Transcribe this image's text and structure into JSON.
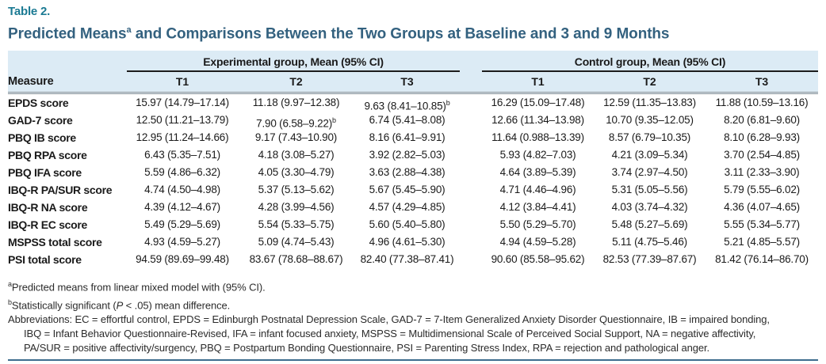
{
  "page": {
    "table_label": "Table 2.",
    "title_pre": "Predicted Means",
    "title_sup": "a",
    "title_post": " and Comparisons Between the Two Groups at Baseline and 3 and 9 Months"
  },
  "colors": {
    "accent_teal": "#1b7a93",
    "title_blue": "#33617f",
    "header_band_blue": "#dcebf5",
    "bottom_rule_blue": "#3e6d8e"
  },
  "table": {
    "measure_header": "Measure",
    "groups": [
      {
        "label": "Experimental group, Mean (95% CI)",
        "cols": [
          "T1",
          "T2",
          "T3"
        ]
      },
      {
        "label": "Control group, Mean (95% CI)",
        "cols": [
          "T1",
          "T2",
          "T3"
        ]
      }
    ],
    "rows": [
      {
        "measure": "EPDS score",
        "exp": [
          "15.97 (14.79–17.14)",
          "11.18 (9.97–12.38)",
          "9.63 (8.41–10.85)^b"
        ],
        "ctrl": [
          "16.29 (15.09–17.48)",
          "12.59 (11.35–13.83)",
          "11.88 (10.59–13.16)"
        ]
      },
      {
        "measure": "GAD-7 score",
        "exp": [
          "12.50 (11.21–13.79)",
          "7.90 (6.58–9.22)^b",
          "6.74 (5.41–8.08)"
        ],
        "ctrl": [
          "12.66 (11.34–13.98)",
          "10.70 (9.35–12.05)",
          "8.20 (6.81–9.60)"
        ]
      },
      {
        "measure": "PBQ IB score",
        "exp": [
          "12.95 (11.24–14.66)",
          "9.17 (7.43–10.90)",
          "8.16 (6.41–9.91)"
        ],
        "ctrl": [
          "11.64 (0.988–13.39)",
          "8.57 (6.79–10.35)",
          "8.10 (6.28–9.93)"
        ]
      },
      {
        "measure": "PBQ RPA score",
        "exp": [
          "6.43 (5.35–7.51)",
          "4.18 (3.08–5.27)",
          "3.92 (2.82–5.03)"
        ],
        "ctrl": [
          "5.93 (4.82–7.03)",
          "4.21 (3.09–5.34)",
          "3.70 (2.54–4.85)"
        ]
      },
      {
        "measure": "PBQ IFA score",
        "exp": [
          "5.59 (4.86–6.32)",
          "4.05 (3.30–4.79)",
          "3.63 (2.88–4.38)"
        ],
        "ctrl": [
          "4.64 (3.89–5.39)",
          "3.74 (2.97–4.50)",
          "3.11 (2.33–3.90)"
        ]
      },
      {
        "measure": "IBQ-R PA/SUR score",
        "exp": [
          "4.74 (4.50–4.98)",
          "5.37 (5.13–5.62)",
          "5.67 (5.45–5.90)"
        ],
        "ctrl": [
          "4.71 (4.46–4.96)",
          "5.31 (5.05–5.56)",
          "5.79 (5.55–6.02)"
        ]
      },
      {
        "measure": "IBQ-R NA score",
        "exp": [
          "4.39 (4.12–4.67)",
          "4.28 (3.99–4.56)",
          "4.57 (4.29–4.85)"
        ],
        "ctrl": [
          "4.12 (3.84–4.41)",
          "4.03 (3.74–4.32)",
          "4.36 (4.07–4.65)"
        ]
      },
      {
        "measure": "IBQ-R EC score",
        "exp": [
          "5.49 (5.29–5.69)",
          "5.54 (5.33–5.75)",
          "5.60 (5.40–5.80)"
        ],
        "ctrl": [
          "5.50 (5.29–5.70)",
          "5.48 (5.27–5.69)",
          "5.55 (5.34–5.77)"
        ]
      },
      {
        "measure": "MSPSS total score",
        "exp": [
          "4.93 (4.59–5.27)",
          "5.09 (4.74–5.43)",
          "4.96 (4.61–5.30)"
        ],
        "ctrl": [
          "4.94 (4.59–5.28)",
          "5.11 (4.75–5.46)",
          "5.21 (4.85–5.57)"
        ]
      },
      {
        "measure": "PSI total score",
        "exp": [
          "94.59 (89.69–99.48)",
          "83.67 (78.68–88.67)",
          "82.40 (77.38–87.41)"
        ],
        "ctrl": [
          "90.60 (85.58–95.62)",
          "82.53 (77.39–87.67)",
          "81.42 (76.14–86.70)"
        ]
      }
    ]
  },
  "footnotes": [
    {
      "sup": "a",
      "segments": [
        {
          "t": "Predicted means from linear mixed model with (95% CI)."
        }
      ]
    },
    {
      "sup": "b",
      "segments": [
        {
          "t": "Statistically significant ("
        },
        {
          "t": "P",
          "i": true
        },
        {
          "t": " < .05) mean difference."
        }
      ]
    },
    {
      "segments": [
        {
          "t": "Abbreviations: EC = effortful control, EPDS = Edinburgh Postnatal Depression Scale, GAD-7 = 7-Item Generalized Anxiety Disorder Questionnaire, IB = impaired bonding,"
        }
      ]
    },
    {
      "indent": true,
      "segments": [
        {
          "t": "IBQ = Infant Behavior Questionnaire-Revised, IFA = infant focused anxiety, MSPSS = Multidimensional Scale of Perceived Social Support, NA = negative affectivity,"
        }
      ]
    },
    {
      "indent": true,
      "segments": [
        {
          "t": "PA/SUR = positive affectivity/surgency, PBQ = Postpartum Bonding Questionnaire, PSI = Parenting Stress Index, RPA = rejection and pathological anger."
        }
      ]
    }
  ]
}
